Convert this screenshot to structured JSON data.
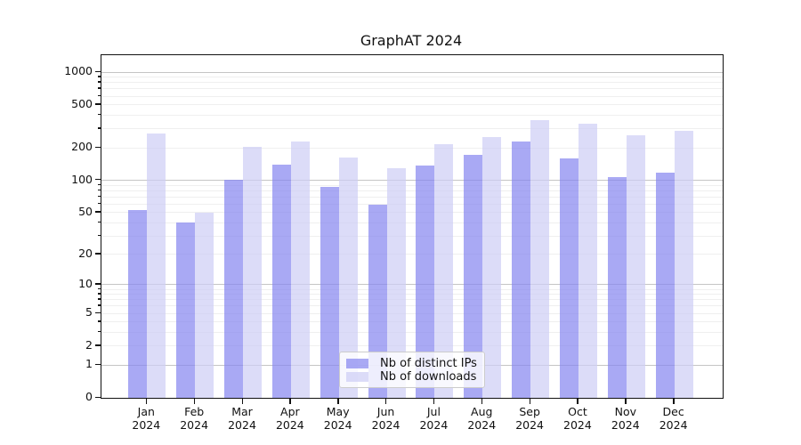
{
  "title": "GraphAT 2024",
  "colors": {
    "ips_bar": "rgba(132,132,240,0.7)",
    "downloads_bar": "rgba(205,205,245,0.7)",
    "grid_major": "#c5c5c5",
    "grid_minor": "#efefef",
    "spine": "#111111",
    "legend_border": "#cccccc"
  },
  "chart_data": {
    "type": "bar",
    "title": "GraphAT 2024",
    "subtitle": "",
    "xlabel": "",
    "ylabel": "",
    "y_scale": "symlog (log1p)",
    "grid": "major and minor horizontal gridlines",
    "legend_position": "inside lower-center",
    "categories": [
      "Jan 2024",
      "Feb 2024",
      "Mar 2024",
      "Apr 2024",
      "May 2024",
      "Jun 2024",
      "Jul 2024",
      "Aug 2024",
      "Sep 2024",
      "Oct 2024",
      "Nov 2024",
      "Dec 2024"
    ],
    "months": [
      "Jan",
      "Feb",
      "Mar",
      "Apr",
      "May",
      "Jun",
      "Jul",
      "Aug",
      "Sep",
      "Oct",
      "Nov",
      "Dec"
    ],
    "year_label": "2024",
    "series": [
      {
        "name": "Nb of distinct IPs",
        "values": [
          53,
          40,
          102,
          141,
          86,
          59,
          138,
          173,
          228,
          160,
          108,
          118
        ]
      },
      {
        "name": "Nb of downloads",
        "values": [
          270,
          50,
          205,
          227,
          163,
          130,
          216,
          252,
          360,
          332,
          263,
          289
        ]
      }
    ],
    "y_ticks": [
      0,
      1,
      2,
      5,
      10,
      20,
      50,
      100,
      200,
      500,
      1000
    ],
    "y_minor_ticks": [
      2,
      3,
      4,
      5,
      6,
      7,
      8,
      9,
      20,
      30,
      40,
      50,
      60,
      70,
      80,
      90,
      200,
      300,
      400,
      500,
      600,
      700,
      800,
      900
    ],
    "y_major_gridlines": [
      1,
      10,
      100,
      1000
    ],
    "ylim": [
      0,
      1430
    ]
  },
  "legend": {
    "items": [
      {
        "label": "Nb of distinct IPs"
      },
      {
        "label": "Nb of downloads"
      }
    ]
  }
}
